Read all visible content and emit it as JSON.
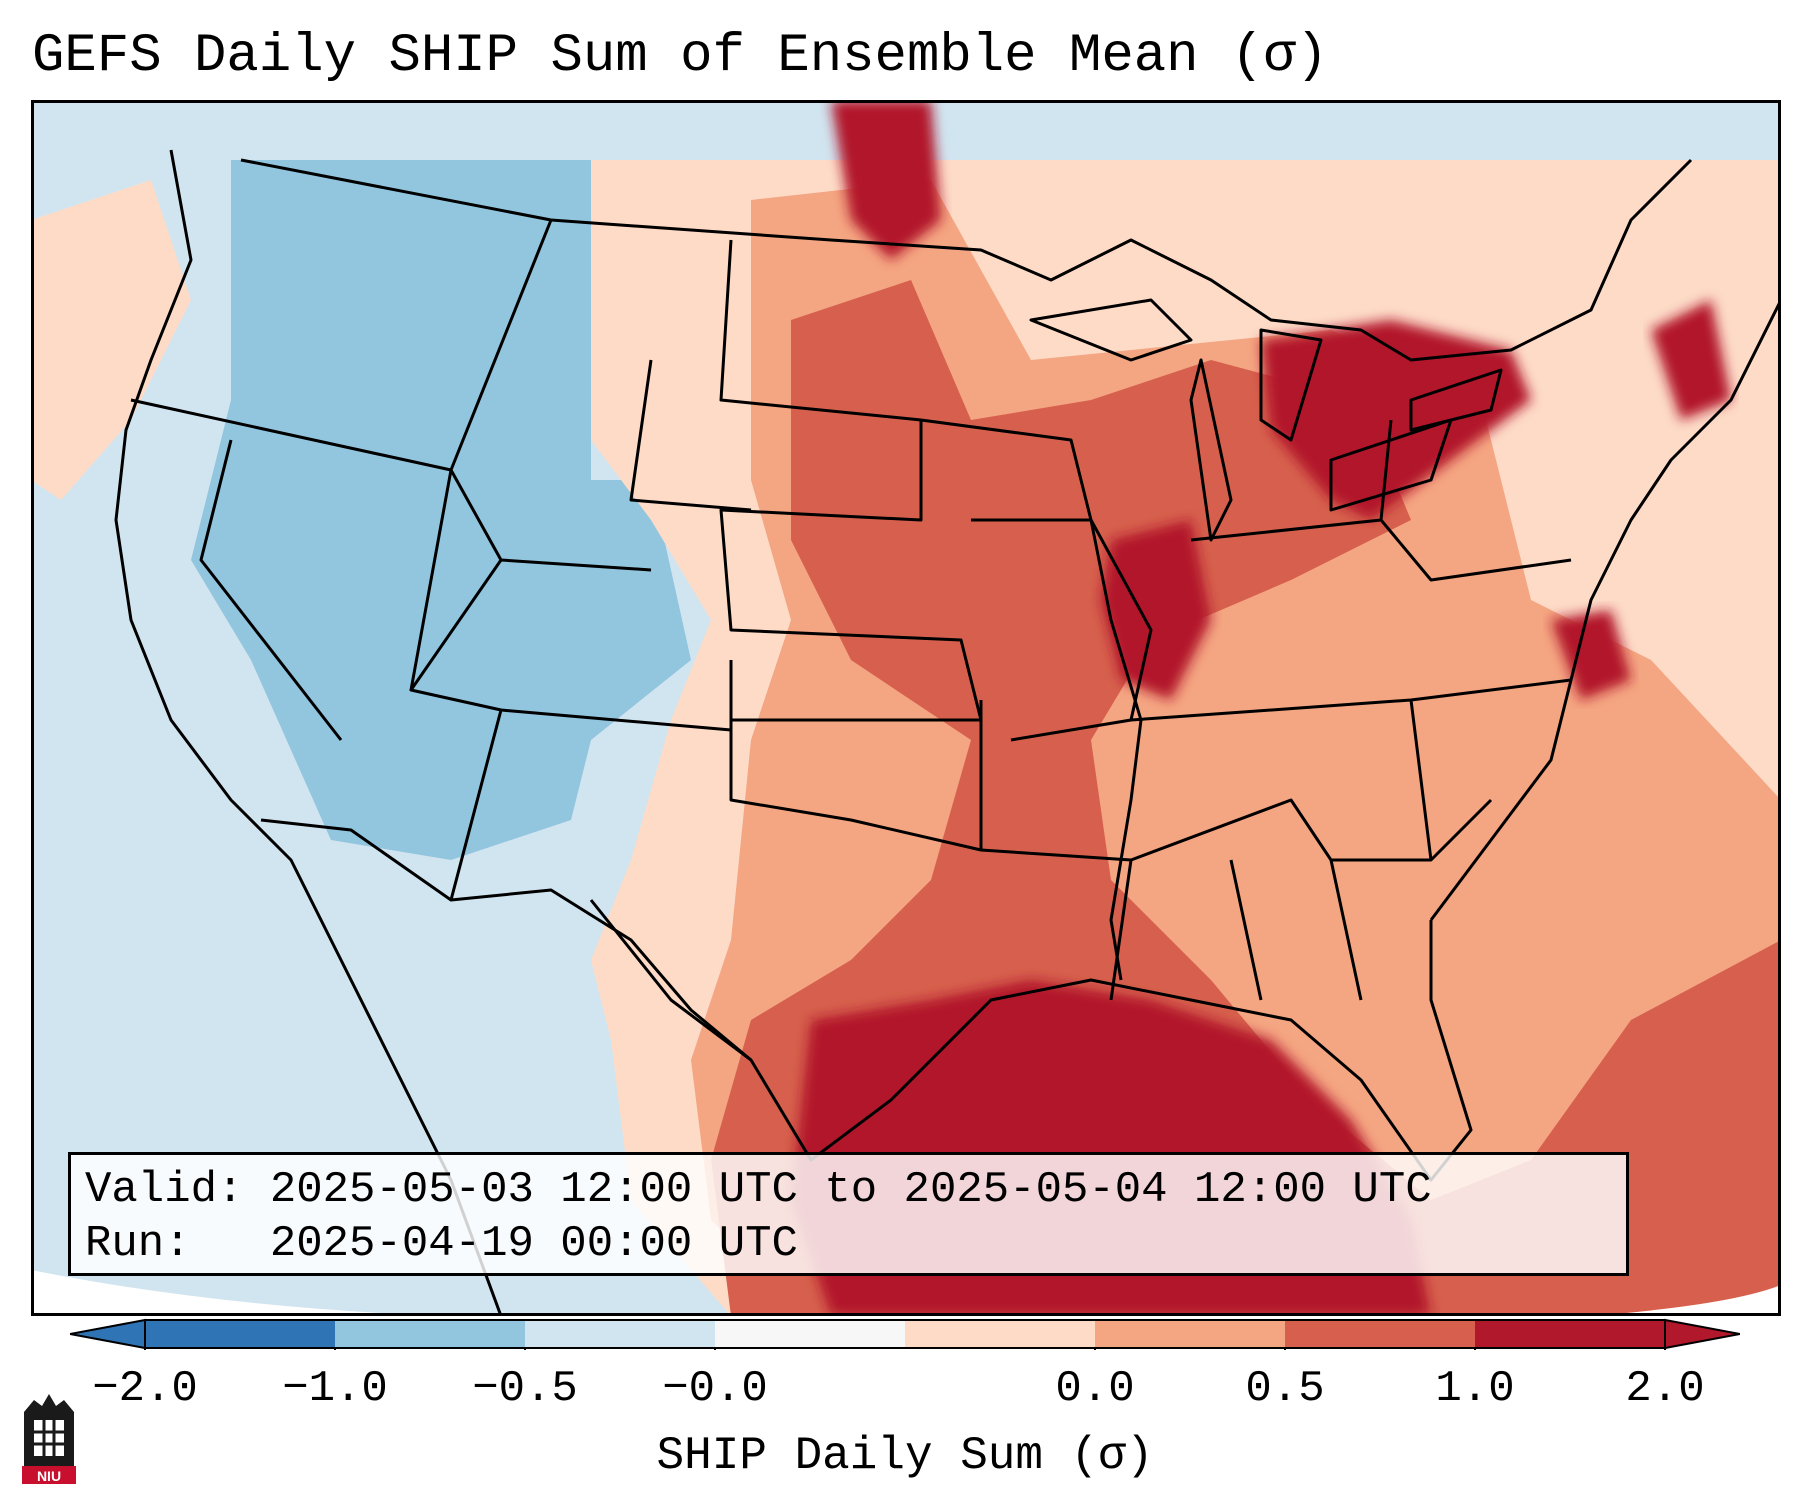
{
  "title": "GEFS Daily SHIP Sum of Ensemble Mean (σ)",
  "info": {
    "valid_label": "Valid:",
    "valid_value": "2025-05-03 12:00 UTC to 2025-05-04 12:00 UTC",
    "run_label": "Run:",
    "run_value": "2025-04-19 00:00 UTC"
  },
  "colorbar": {
    "label": "SHIP Daily Sum (σ)",
    "tick_labels": [
      "−2.0",
      "−1.0",
      "−0.5",
      "−0.0",
      "0.0",
      "0.5",
      "1.0",
      "2.0"
    ],
    "colors": [
      "#2f74b4",
      "#92c5de",
      "#d1e5f0",
      "#f7f7f7",
      "#fddbc7",
      "#f4a582",
      "#d6604d",
      "#b2182b"
    ],
    "extend": "both"
  },
  "map": {
    "region": "CONUS",
    "ocean_color": "#d1e5f0",
    "border_color": "#000000",
    "off_domain_color": "#ffffff"
  },
  "logo": {
    "text": "NIU",
    "colors": [
      "#c8102e",
      "#1a1a1a"
    ]
  }
}
